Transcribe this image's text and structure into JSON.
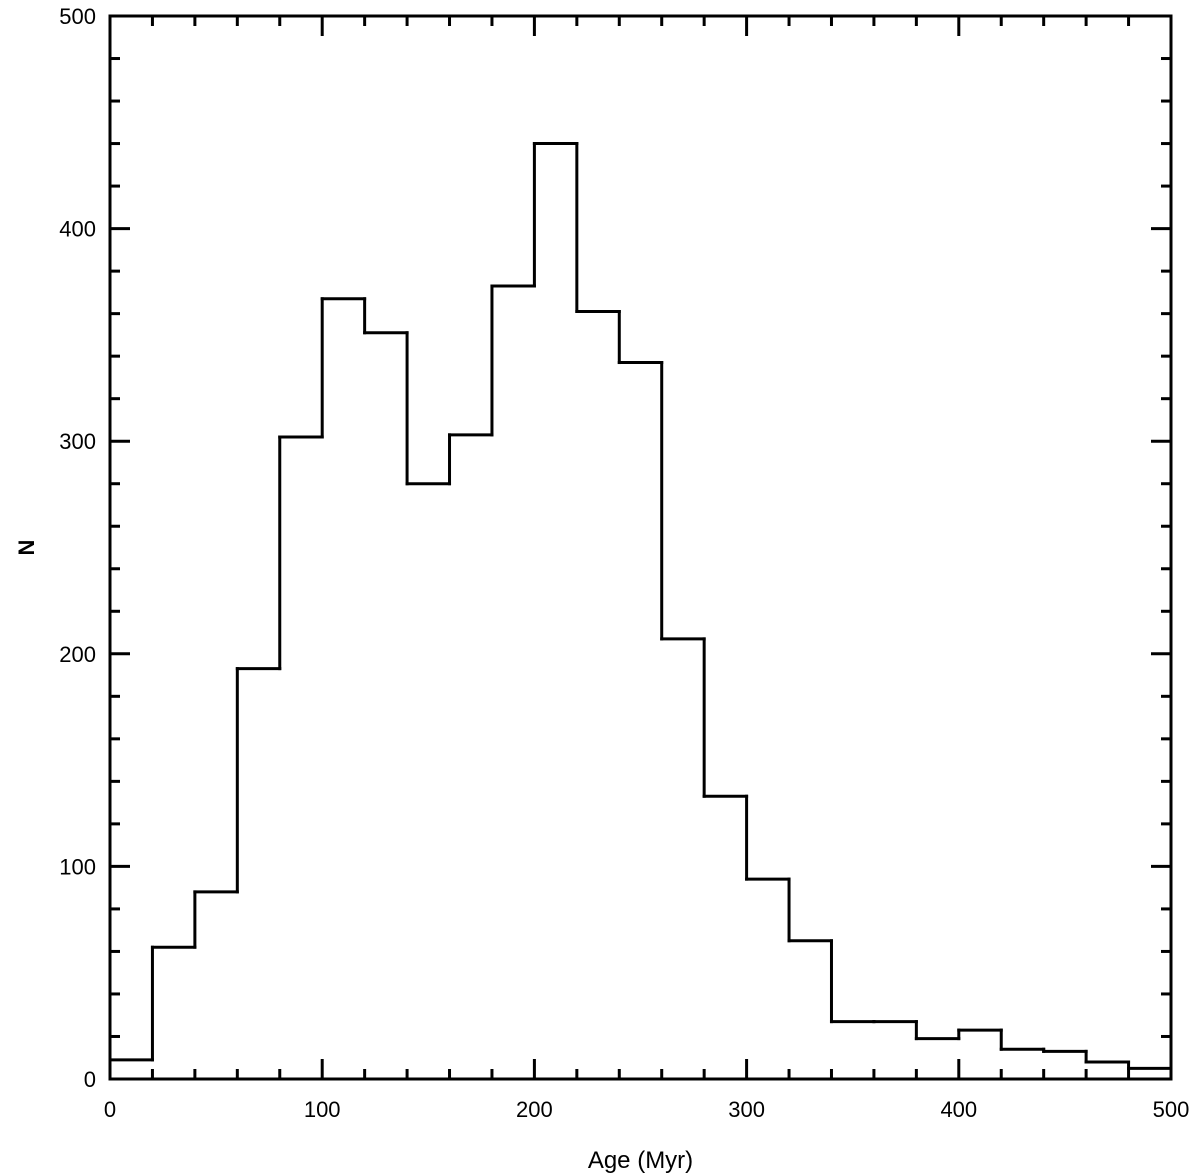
{
  "chart_data": {
    "type": "bar",
    "style": "step-histogram",
    "title": "",
    "xlabel": "Age (Myr)",
    "ylabel": "N",
    "xlim": [
      0,
      500
    ],
    "ylim": [
      0,
      500
    ],
    "bin_width": 20,
    "bin_edges": [
      0,
      20,
      40,
      60,
      80,
      100,
      120,
      140,
      160,
      180,
      200,
      220,
      240,
      260,
      280,
      300,
      320,
      340,
      360,
      380,
      400,
      420,
      440,
      460,
      480,
      500
    ],
    "values": [
      9,
      62,
      88,
      193,
      302,
      367,
      351,
      280,
      303,
      373,
      440,
      361,
      337,
      207,
      133,
      94,
      65,
      27,
      27,
      19,
      23,
      14,
      13,
      8,
      5
    ],
    "x_ticks": [
      0,
      100,
      200,
      300,
      400,
      500
    ],
    "y_ticks": [
      0,
      100,
      200,
      300,
      400,
      500
    ],
    "x_tick_labels": [
      "0",
      "100",
      "200",
      "300",
      "400",
      "500"
    ],
    "y_tick_labels": [
      "0",
      "100",
      "200",
      "300",
      "400",
      "500"
    ],
    "grid": false,
    "legend": "none",
    "line_color": "#000000"
  }
}
